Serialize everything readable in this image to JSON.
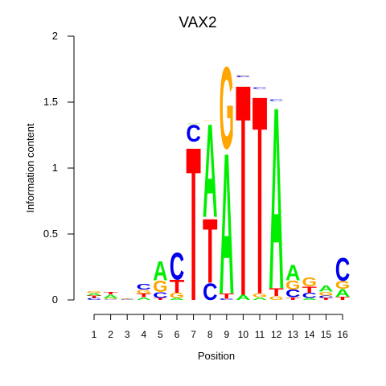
{
  "chart_data": {
    "type": "sequence-logo",
    "title": "VAX2",
    "xlabel": "Position",
    "ylabel": "Information content",
    "ylim": [
      0,
      2
    ],
    "y_ticks": [
      "0",
      "0.5",
      "1",
      "1.5",
      "2"
    ],
    "positions": [
      {
        "label": "1",
        "stack": [
          [
            "C",
            0.015
          ],
          [
            "T",
            0.02
          ],
          [
            "A",
            0.018
          ],
          [
            "G",
            0.015
          ]
        ]
      },
      {
        "label": "2",
        "stack": [
          [
            "C",
            0.005
          ],
          [
            "G",
            0.008
          ],
          [
            "A",
            0.03
          ],
          [
            "T",
            0.02
          ]
        ]
      },
      {
        "label": "3",
        "stack": [
          [
            "C",
            0.002
          ],
          [
            "G",
            0.003
          ],
          [
            "A",
            0.004
          ],
          [
            "T",
            0.005
          ]
        ]
      },
      {
        "label": "4",
        "stack": [
          [
            "A",
            0.02
          ],
          [
            "T",
            0.03
          ],
          [
            "G",
            0.03
          ],
          [
            "C",
            0.045
          ]
        ]
      },
      {
        "label": "5",
        "stack": [
          [
            "T",
            0.015
          ],
          [
            "C",
            0.045
          ],
          [
            "G",
            0.09
          ],
          [
            "A",
            0.15
          ]
        ]
      },
      {
        "label": "6",
        "stack": [
          [
            "A",
            0.015
          ],
          [
            "G",
            0.04
          ],
          [
            "T",
            0.1
          ],
          [
            "C",
            0.21
          ]
        ]
      },
      {
        "label": "7",
        "stack": [
          [
            "T",
            1.2
          ],
          [
            "C",
            0.13
          ],
          [
            "G",
            0.005
          ],
          [
            "A",
            0.005
          ]
        ]
      },
      {
        "label": "8",
        "stack": [
          [
            "C",
            0.13
          ],
          [
            "T",
            0.5
          ],
          [
            "A",
            0.73
          ],
          [
            "G",
            0.005
          ]
        ]
      },
      {
        "label": "9",
        "stack": [
          [
            "C",
            0.01
          ],
          [
            "T",
            0.04
          ],
          [
            "A",
            1.1
          ],
          [
            "G",
            0.64
          ]
        ]
      },
      {
        "label": "10",
        "stack": [
          [
            "A",
            0.04
          ],
          [
            "T",
            1.65
          ],
          [
            "C",
            0.01
          ],
          [
            "G",
            0.005
          ]
        ]
      },
      {
        "label": "11",
        "stack": [
          [
            "A",
            0.02
          ],
          [
            "G",
            0.03
          ],
          [
            "T",
            1.55
          ],
          [
            "C",
            0.01
          ]
        ]
      },
      {
        "label": "12",
        "stack": [
          [
            "G",
            0.03
          ],
          [
            "T",
            0.06
          ],
          [
            "A",
            1.42
          ],
          [
            "C",
            0.01
          ]
        ]
      },
      {
        "label": "13",
        "stack": [
          [
            "T",
            0.02
          ],
          [
            "C",
            0.06
          ],
          [
            "G",
            0.07
          ],
          [
            "A",
            0.12
          ]
        ]
      },
      {
        "label": "14",
        "stack": [
          [
            "A",
            0.015
          ],
          [
            "C",
            0.04
          ],
          [
            "T",
            0.05
          ],
          [
            "G",
            0.07
          ]
        ]
      },
      {
        "label": "15",
        "stack": [
          [
            "T",
            0.015
          ],
          [
            "C",
            0.02
          ],
          [
            "G",
            0.03
          ],
          [
            "A",
            0.05
          ]
        ]
      },
      {
        "label": "16",
        "stack": [
          [
            "T",
            0.025
          ],
          [
            "A",
            0.06
          ],
          [
            "G",
            0.06
          ],
          [
            "C",
            0.18
          ]
        ]
      }
    ],
    "colors": {
      "A": "#00ee00",
      "C": "#0000ee",
      "G": "#ffa500",
      "T": "#ff0000"
    }
  }
}
